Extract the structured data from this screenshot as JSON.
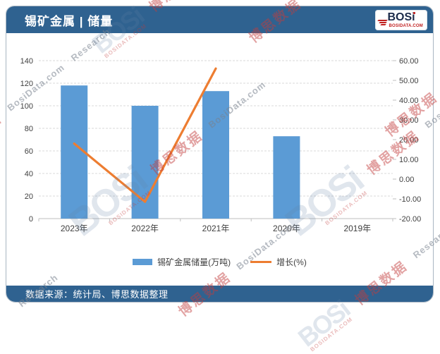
{
  "header": {
    "title": "锡矿金属 | 储量"
  },
  "logo": {
    "text": "BOSi",
    "subtext": "BOSIDATA.COM"
  },
  "footer": {
    "source": "数据来源：统计局、博思数据整理"
  },
  "watermark": {
    "bosi": "BOSi",
    "site": "BOSIDATA.COM",
    "cn": "博思数据",
    "en": "BosiData.com",
    "research": "Research"
  },
  "colors": {
    "header_bg": "#2F6290",
    "footer_bg": "#2F6290",
    "bar": "#5B9BD5",
    "line": "#ED7D31",
    "grid": "#D9D9D9",
    "axis": "#BFBFBF",
    "axis_text": "#404040",
    "card_border": "#A9B6C2",
    "logo_navy": "#1C2B4A",
    "logo_red": "#C01F1F"
  },
  "chart_data": {
    "type": "bar",
    "title": "锡矿金属 | 储量",
    "categories": [
      "2023年",
      "2022年",
      "2021年",
      "2020年",
      "2019年"
    ],
    "series": [
      {
        "name": "锡矿金属储量(万吨)",
        "type": "bar",
        "axis": "left",
        "color": "#5B9BD5",
        "values": [
          118,
          100,
          113,
          73,
          null
        ]
      },
      {
        "name": "增长(%)",
        "type": "line",
        "axis": "right",
        "color": "#ED7D31",
        "values": [
          18.0,
          -11.5,
          56.0,
          null,
          null
        ]
      }
    ],
    "axes": {
      "left": {
        "min": 0,
        "max": 140,
        "ticks": [
          "0",
          "20",
          "40",
          "60",
          "80",
          "100",
          "120",
          "140"
        ]
      },
      "right": {
        "min": -20,
        "max": 60,
        "ticks": [
          "-20.00",
          "-10.00",
          "0.00",
          "10.00",
          "20.00",
          "30.00",
          "40.00",
          "50.00",
          "60.00"
        ]
      }
    },
    "grid": true,
    "legend_position": "bottom"
  }
}
